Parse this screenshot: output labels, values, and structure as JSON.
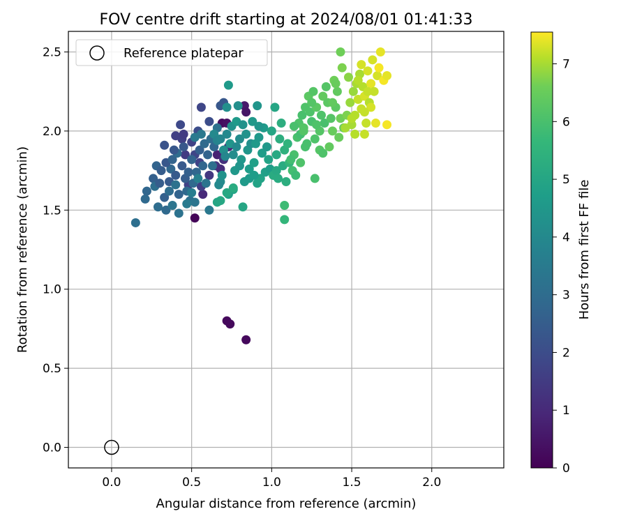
{
  "chart_data": {
    "type": "scatter",
    "title": "FOV centre drift starting at 2024/08/01 01:41:33",
    "xlabel": "Angular distance from reference (arcmin)",
    "ylabel": "Rotation from reference (arcmin)",
    "xlim": [
      -0.27,
      2.45
    ],
    "ylim": [
      -0.13,
      2.63
    ],
    "xticks": [
      0.0,
      0.5,
      1.0,
      1.5,
      2.0
    ],
    "xtick_labels": [
      "0.0",
      "0.5",
      "1.0",
      "1.5",
      "2.0"
    ],
    "yticks": [
      0.0,
      0.5,
      1.0,
      1.5,
      2.0,
      2.5
    ],
    "ytick_labels": [
      "0.0",
      "0.5",
      "1.0",
      "1.5",
      "2.0",
      "2.5"
    ],
    "grid": true,
    "legend": {
      "placement": "top-left",
      "entries": [
        {
          "label": "Reference platepar",
          "marker": "open-circle"
        }
      ]
    },
    "reference_point": {
      "x": 0.0,
      "y": 0.0
    },
    "colorbar": {
      "label": "Hours from first FF file",
      "range": [
        0,
        7.55
      ],
      "ticks": [
        0,
        1,
        2,
        3,
        4,
        5,
        6,
        7
      ],
      "tick_labels": [
        "0",
        "1",
        "2",
        "3",
        "4",
        "5",
        "6",
        "7"
      ],
      "colormap": "viridis"
    },
    "points": [
      [
        0.52,
        1.45,
        0.1
      ],
      [
        0.72,
        0.8,
        0.2
      ],
      [
        0.74,
        0.78,
        0.2
      ],
      [
        0.84,
        0.68,
        0.2
      ],
      [
        0.69,
        2.05,
        0.3
      ],
      [
        0.72,
        2.05,
        0.4
      ],
      [
        0.83,
        2.16,
        0.6
      ],
      [
        0.84,
        2.12,
        0.5
      ],
      [
        0.66,
        1.85,
        0.8
      ],
      [
        0.57,
        1.6,
        1.0
      ],
      [
        0.73,
        1.9,
        0.9
      ],
      [
        0.65,
        1.78,
        1.3
      ],
      [
        0.68,
        1.76,
        1.1
      ],
      [
        0.7,
        1.82,
        1.2
      ],
      [
        0.56,
        2.15,
        1.8
      ],
      [
        0.43,
        2.04,
        1.9
      ],
      [
        0.5,
        1.93,
        1.7
      ],
      [
        0.56,
        1.65,
        1.6
      ],
      [
        0.61,
        2.06,
        2.0
      ],
      [
        0.48,
        1.66,
        1.7
      ],
      [
        0.44,
        1.95,
        1.6
      ],
      [
        0.68,
        2.16,
        2.3
      ],
      [
        0.7,
        2.18,
        2.3
      ],
      [
        0.4,
        1.97,
        1.6
      ],
      [
        0.45,
        1.98,
        1.5
      ],
      [
        0.52,
        1.85,
        1.8
      ],
      [
        0.54,
        2.0,
        2.0
      ],
      [
        0.61,
        1.72,
        1.4
      ],
      [
        0.46,
        1.85,
        1.5
      ],
      [
        0.55,
        1.8,
        1.7
      ],
      [
        0.15,
        1.42,
        3.1
      ],
      [
        0.21,
        1.57,
        2.9
      ],
      [
        0.22,
        1.62,
        2.8
      ],
      [
        0.26,
        1.7,
        2.6
      ],
      [
        0.28,
        1.78,
        2.7
      ],
      [
        0.27,
        1.65,
        3.1
      ],
      [
        0.29,
        1.52,
        3.0
      ],
      [
        0.3,
        1.67,
        2.5
      ],
      [
        0.33,
        1.58,
        2.6
      ],
      [
        0.34,
        1.5,
        2.9
      ],
      [
        0.36,
        1.62,
        3.0
      ],
      [
        0.37,
        1.76,
        2.8
      ],
      [
        0.38,
        1.53,
        3.3
      ],
      [
        0.4,
        1.72,
        2.4
      ],
      [
        0.42,
        1.48,
        3.2
      ],
      [
        0.34,
        1.8,
        2.3
      ],
      [
        0.36,
        1.68,
        2.4
      ],
      [
        0.42,
        1.6,
        2.7
      ],
      [
        0.44,
        1.78,
        2.4
      ],
      [
        0.46,
        1.7,
        2.5
      ],
      [
        0.47,
        1.62,
        2.9
      ],
      [
        0.48,
        1.74,
        2.6
      ],
      [
        0.49,
        1.56,
        3.1
      ],
      [
        0.5,
        1.82,
        2.7
      ],
      [
        0.51,
        1.67,
        2.9
      ],
      [
        0.53,
        1.74,
        2.8
      ],
      [
        0.55,
        1.88,
        2.6
      ],
      [
        0.57,
        1.78,
        2.8
      ],
      [
        0.58,
        1.92,
        2.9
      ],
      [
        0.6,
        1.85,
        2.7
      ],
      [
        0.62,
        1.95,
        3.0
      ],
      [
        0.63,
        1.78,
        3.1
      ],
      [
        0.64,
        1.9,
        2.8
      ],
      [
        0.66,
        2.02,
        3.2
      ],
      [
        0.61,
        1.5,
        3.4
      ],
      [
        0.52,
        1.55,
        3.3
      ],
      [
        0.41,
        1.86,
        3.0
      ],
      [
        0.39,
        1.88,
        2.3
      ],
      [
        0.33,
        1.91,
        2.2
      ],
      [
        0.31,
        1.75,
        2.5
      ],
      [
        0.38,
        1.82,
        2.7
      ],
      [
        0.45,
        1.9,
        2.3
      ],
      [
        0.59,
        1.67,
        3.3
      ],
      [
        0.52,
        1.96,
        3.5
      ],
      [
        0.56,
        1.98,
        3.4
      ],
      [
        0.47,
        1.54,
        3.5
      ],
      [
        0.4,
        1.66,
        3.2
      ],
      [
        0.5,
        1.61,
        3.6
      ],
      [
        0.54,
        1.7,
        3.7
      ],
      [
        0.64,
        1.98,
        4.0
      ],
      [
        0.66,
        1.94,
        3.8
      ],
      [
        0.68,
        1.68,
        4.1
      ],
      [
        0.69,
        1.72,
        4.3
      ],
      [
        0.7,
        1.88,
        4.2
      ],
      [
        0.72,
        1.98,
        4.0
      ],
      [
        0.73,
        2.29,
        4.6
      ],
      [
        0.74,
        1.92,
        4.4
      ],
      [
        0.75,
        2.03,
        4.3
      ],
      [
        0.76,
        1.85,
        4.1
      ],
      [
        0.77,
        1.75,
        4.5
      ],
      [
        0.78,
        2.06,
        4.6
      ],
      [
        0.79,
        2.16,
        4.2
      ],
      [
        0.8,
        1.95,
        4.1
      ],
      [
        0.81,
        1.82,
        4.5
      ],
      [
        0.82,
        2.04,
        4.3
      ],
      [
        0.83,
        1.68,
        4.6
      ],
      [
        0.85,
        1.88,
        4.4
      ],
      [
        0.86,
        1.76,
        4.7
      ],
      [
        0.87,
        1.92,
        4.2
      ],
      [
        0.88,
        2.06,
        4.5
      ],
      [
        0.89,
        1.8,
        4.8
      ],
      [
        0.9,
        1.92,
        4.6
      ],
      [
        0.91,
        2.16,
        4.4
      ],
      [
        0.92,
        1.96,
        4.5
      ],
      [
        0.93,
        1.7,
        4.9
      ],
      [
        0.94,
        1.86,
        4.7
      ],
      [
        0.95,
        2.02,
        4.6
      ],
      [
        0.96,
        1.74,
        4.8
      ],
      [
        0.97,
        1.9,
        4.5
      ],
      [
        0.98,
        1.82,
        4.9
      ],
      [
        0.99,
        1.76,
        4.7
      ],
      [
        0.73,
        1.6,
        4.8
      ],
      [
        0.72,
        2.15,
        4.2
      ],
      [
        0.76,
        1.63,
        4.9
      ],
      [
        0.8,
        1.78,
        4.4
      ],
      [
        0.84,
        1.98,
        4.3
      ],
      [
        0.86,
        1.7,
        4.6
      ],
      [
        0.78,
        1.9,
        4.0
      ],
      [
        0.89,
        1.72,
        4.7
      ],
      [
        0.92,
        2.03,
        4.4
      ],
      [
        0.71,
        1.84,
        3.9
      ],
      [
        0.67,
        1.66,
        4.0
      ],
      [
        0.68,
        1.95,
        3.9
      ],
      [
        0.91,
        1.67,
        4.9
      ],
      [
        0.82,
        1.52,
        5.0
      ],
      [
        0.76,
        1.64,
        5.2
      ],
      [
        0.68,
        1.56,
        5.1
      ],
      [
        0.66,
        1.55,
        5.0
      ],
      [
        0.72,
        1.61,
        5.1
      ],
      [
        1.0,
        2.0,
        5.0
      ],
      [
        1.01,
        1.72,
        5.2
      ],
      [
        1.03,
        1.85,
        5.1
      ],
      [
        1.05,
        1.95,
        5.3
      ],
      [
        1.07,
        1.78,
        5.2
      ],
      [
        1.08,
        1.88,
        5.4
      ],
      [
        1.09,
        1.68,
        5.3
      ],
      [
        1.1,
        1.92,
        5.5
      ],
      [
        1.02,
        2.15,
        5.0
      ],
      [
        1.03,
        1.75,
        5.1
      ],
      [
        1.04,
        1.7,
        5.2
      ],
      [
        1.06,
        2.05,
        5.3
      ],
      [
        1.11,
        1.8,
        5.6
      ],
      [
        1.08,
        1.53,
        5.8
      ],
      [
        1.08,
        1.44,
        5.6
      ],
      [
        1.13,
        1.75,
        5.9
      ],
      [
        1.14,
        1.85,
        6.0
      ],
      [
        1.15,
        1.72,
        5.8
      ],
      [
        1.16,
        1.96,
        6.0
      ],
      [
        1.17,
        2.05,
        6.1
      ],
      [
        1.18,
        1.98,
        5.9
      ],
      [
        1.19,
        2.1,
        6.0
      ],
      [
        1.2,
        2.02,
        6.2
      ],
      [
        1.21,
        2.15,
        6.1
      ],
      [
        1.22,
        1.92,
        6.0
      ],
      [
        1.23,
        2.22,
        6.3
      ],
      [
        1.24,
        2.12,
        6.1
      ],
      [
        1.25,
        2.06,
        6.0
      ],
      [
        1.26,
        2.25,
        6.2
      ],
      [
        1.27,
        1.95,
        6.1
      ],
      [
        1.28,
        2.15,
        6.3
      ],
      [
        1.3,
        2.0,
        6.2
      ],
      [
        1.31,
        2.1,
        6.1
      ],
      [
        1.32,
        2.22,
        6.4
      ],
      [
        1.33,
        2.05,
        6.0
      ],
      [
        1.34,
        2.28,
        6.2
      ],
      [
        1.35,
        2.18,
        6.3
      ],
      [
        1.36,
        1.9,
        6.4
      ],
      [
        1.37,
        2.08,
        6.2
      ],
      [
        1.38,
        2.0,
        6.5
      ],
      [
        1.39,
        2.32,
        6.6
      ],
      [
        1.4,
        2.15,
        6.3
      ],
      [
        1.41,
        2.25,
        6.4
      ],
      [
        1.42,
        1.96,
        6.5
      ],
      [
        1.43,
        2.08,
        6.6
      ],
      [
        1.44,
        2.4,
        6.7
      ],
      [
        1.45,
        2.02,
        6.5
      ],
      [
        1.27,
        1.7,
        6.0
      ],
      [
        1.18,
        1.8,
        6.1
      ],
      [
        1.12,
        1.82,
        5.9
      ],
      [
        1.21,
        1.9,
        6.0
      ],
      [
        1.3,
        1.88,
        6.2
      ],
      [
        1.32,
        1.86,
        6.1
      ],
      [
        1.43,
        2.5,
        6.6
      ],
      [
        1.38,
        2.18,
        6.4
      ],
      [
        1.47,
        2.1,
        6.7
      ],
      [
        1.2,
        2.0,
        6.2
      ],
      [
        1.28,
        2.04,
        6.1
      ],
      [
        1.25,
        2.18,
        6.2
      ],
      [
        1.14,
        2.03,
        6.0
      ],
      [
        1.4,
        2.3,
        6.5
      ],
      [
        1.48,
        2.34,
        6.8
      ],
      [
        1.49,
        2.18,
        6.9
      ],
      [
        1.5,
        2.04,
        7.0
      ],
      [
        1.51,
        2.25,
        6.9
      ],
      [
        1.52,
        2.1,
        7.1
      ],
      [
        1.53,
        2.3,
        7.0
      ],
      [
        1.54,
        2.2,
        7.2
      ],
      [
        1.55,
        2.36,
        7.0
      ],
      [
        1.56,
        2.14,
        7.2
      ],
      [
        1.57,
        2.28,
        7.1
      ],
      [
        1.58,
        2.22,
        7.3
      ],
      [
        1.59,
        2.05,
        7.2
      ],
      [
        1.6,
        2.38,
        7.3
      ],
      [
        1.61,
        2.18,
        7.1
      ],
      [
        1.62,
        2.3,
        7.4
      ],
      [
        1.63,
        2.45,
        7.3
      ],
      [
        1.64,
        2.25,
        7.2
      ],
      [
        1.65,
        2.05,
        7.4
      ],
      [
        1.66,
        2.35,
        7.3
      ],
      [
        1.67,
        2.4,
        7.5
      ],
      [
        1.68,
        2.5,
        7.4
      ],
      [
        1.7,
        2.32,
        7.5
      ],
      [
        1.72,
        2.35,
        7.4
      ],
      [
        1.72,
        2.04,
        7.5
      ],
      [
        1.58,
        1.98,
        7.2
      ],
      [
        1.5,
        2.08,
        7.1
      ],
      [
        1.46,
        2.02,
        7.0
      ],
      [
        1.54,
        2.32,
        7.1
      ],
      [
        1.6,
        2.25,
        7.2
      ],
      [
        1.56,
        2.42,
        7.3
      ],
      [
        1.52,
        1.98,
        7.1
      ],
      [
        1.62,
        2.15,
        7.3
      ],
      [
        1.58,
        2.12,
        7.2
      ]
    ]
  }
}
